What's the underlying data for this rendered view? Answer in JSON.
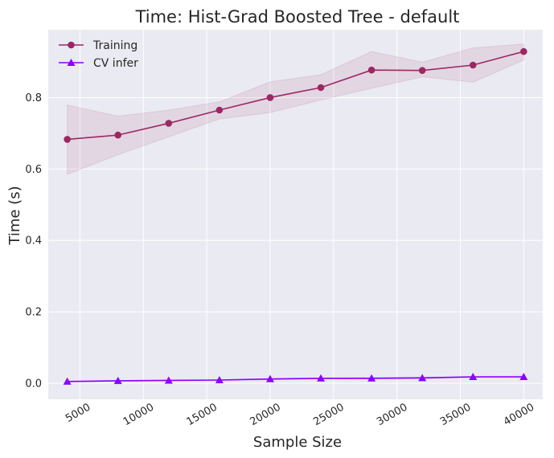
{
  "chart_data": {
    "type": "line",
    "title": "Time: Hist-Grad Boosted Tree - default",
    "xlabel": "Sample Size",
    "ylabel": "Time (s)",
    "xlim": [
      2500,
      41500
    ],
    "ylim": [
      -0.045,
      0.99
    ],
    "grid": true,
    "legend_position": "top-left",
    "x": [
      4000,
      8000,
      12000,
      16000,
      20000,
      24000,
      28000,
      32000,
      36000,
      40000
    ],
    "xticks": [
      5000,
      10000,
      15000,
      20000,
      25000,
      30000,
      35000,
      40000
    ],
    "xtick_labels": [
      "5000",
      "10000",
      "15000",
      "20000",
      "25000",
      "30000",
      "35000",
      "40000"
    ],
    "yticks": [
      0.0,
      0.2,
      0.4,
      0.6,
      0.8
    ],
    "ytick_labels": [
      "0.0",
      "0.2",
      "0.4",
      "0.6",
      "0.8"
    ],
    "series": [
      {
        "name": "Training",
        "color": "#9c2862",
        "marker": "circle",
        "values": [
          0.683,
          0.695,
          0.728,
          0.765,
          0.8,
          0.828,
          0.877,
          0.876,
          0.891,
          0.929
        ],
        "band_lower": [
          0.585,
          0.64,
          0.69,
          0.74,
          0.758,
          0.793,
          0.826,
          0.858,
          0.843,
          0.905
        ],
        "band_upper": [
          0.779,
          0.748,
          0.765,
          0.788,
          0.844,
          0.864,
          0.929,
          0.899,
          0.939,
          0.95
        ]
      },
      {
        "name": "CV infer",
        "color": "#8b00ff",
        "marker": "triangle",
        "values": [
          0.005,
          0.007,
          0.008,
          0.009,
          0.012,
          0.014,
          0.014,
          0.015,
          0.018,
          0.018
        ],
        "band_lower": [
          0.004,
          0.006,
          0.007,
          0.008,
          0.01,
          0.012,
          0.012,
          0.013,
          0.016,
          0.016
        ],
        "band_upper": [
          0.006,
          0.008,
          0.009,
          0.01,
          0.013,
          0.015,
          0.016,
          0.017,
          0.019,
          0.02
        ]
      }
    ]
  }
}
